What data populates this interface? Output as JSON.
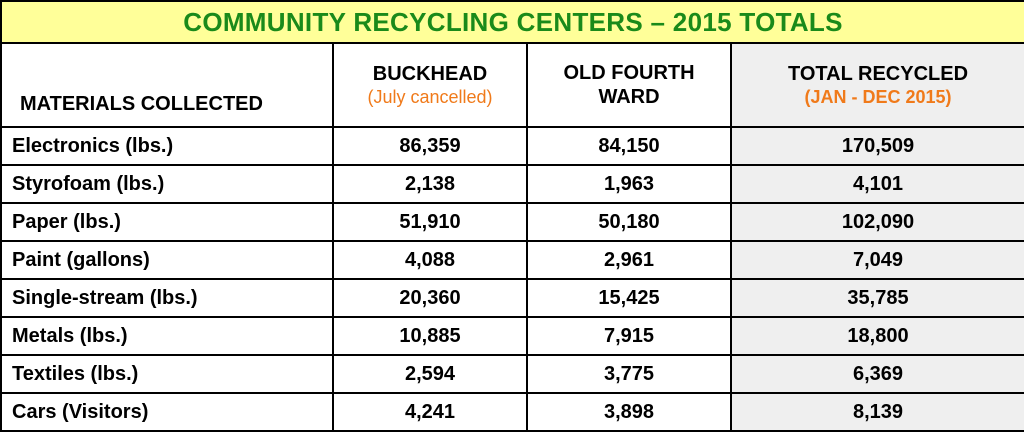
{
  "title": "COMMUNITY RECYCLING CENTERS – 2015 TOTALS",
  "headers": {
    "materials": "MATERIALS COLLECTED",
    "buckhead": "BUCKHEAD",
    "buckhead_note": "(July cancelled)",
    "old_fourth_ward": "OLD FOURTH WARD",
    "total": "TOTAL RECYCLED",
    "total_note": "(JAN - DEC 2015)"
  },
  "colors": {
    "title_text": "#1a8a1a",
    "title_bg": "#ffff99",
    "note_text": "#f07a1a",
    "total_bg": "#efefef"
  },
  "rows": [
    {
      "material": "Electronics (lbs.)",
      "buckhead": "86,359",
      "old_fourth_ward": "84,150",
      "total": "170,509"
    },
    {
      "material": "Styrofoam (lbs.)",
      "buckhead": "2,138",
      "old_fourth_ward": "1,963",
      "total": "4,101"
    },
    {
      "material": "Paper (lbs.)",
      "buckhead": "51,910",
      "old_fourth_ward": "50,180",
      "total": "102,090"
    },
    {
      "material": "Paint (gallons)",
      "buckhead": "4,088",
      "old_fourth_ward": "2,961",
      "total": "7,049"
    },
    {
      "material": "Single-stream (lbs.)",
      "buckhead": "20,360",
      "old_fourth_ward": "15,425",
      "total": "35,785"
    },
    {
      "material": "Metals (lbs.)",
      "buckhead": "10,885",
      "old_fourth_ward": "7,915",
      "total": "18,800"
    },
    {
      "material": "Textiles (lbs.)",
      "buckhead": "2,594",
      "old_fourth_ward": "3,775",
      "total": "6,369"
    },
    {
      "material": "Cars (Visitors)",
      "buckhead": "4,241",
      "old_fourth_ward": "3,898",
      "total": "8,139"
    }
  ]
}
